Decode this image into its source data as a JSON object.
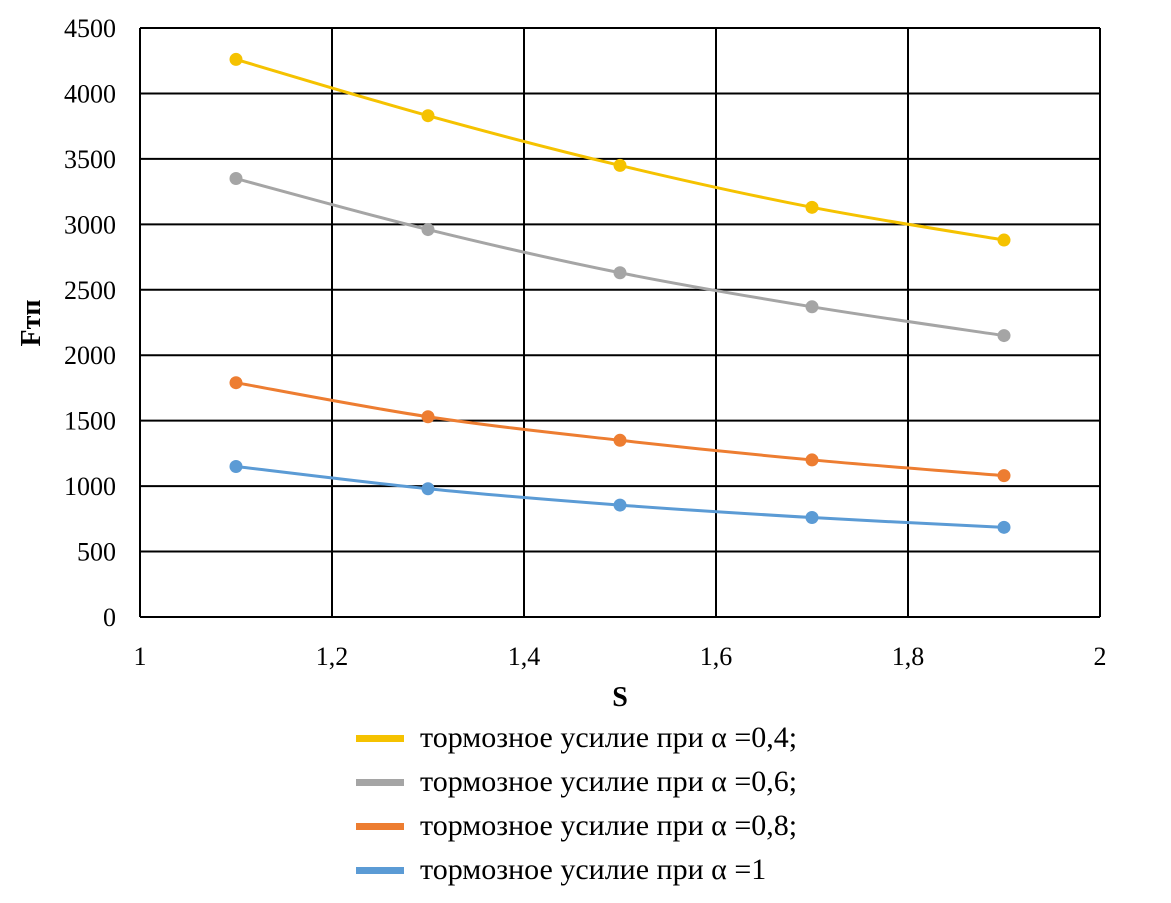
{
  "chart_data": {
    "type": "line",
    "title": "",
    "xlabel": "S",
    "ylabel": "Fтп",
    "xlim": [
      1,
      2
    ],
    "ylim": [
      0,
      4500
    ],
    "xticks": [
      "1",
      "1,2",
      "1,4",
      "1,6",
      "1,8",
      "2"
    ],
    "yticks": [
      "0",
      "500",
      "1000",
      "1500",
      "2000",
      "2500",
      "3000",
      "3500",
      "4000",
      "4500"
    ],
    "grid": true,
    "legend_position": "bottom",
    "x": [
      1.1,
      1.3,
      1.5,
      1.7,
      1.9
    ],
    "series": [
      {
        "name": "тормозное усилие при  α =0,4;",
        "color": "#F5C200",
        "values": [
          4260,
          3830,
          3450,
          3130,
          2880
        ]
      },
      {
        "name": "тормозное усилие при  α =0,6;",
        "color": "#A5A5A5",
        "values": [
          3350,
          2960,
          2630,
          2370,
          2150
        ]
      },
      {
        "name": "тормозное усилие при  α =0,8;",
        "color": "#ED7D31",
        "values": [
          1790,
          1530,
          1350,
          1200,
          1080
        ]
      },
      {
        "name": "тормозное усилие при  α =1",
        "color": "#5B9BD5",
        "values": [
          1150,
          980,
          855,
          760,
          685
        ]
      }
    ]
  }
}
